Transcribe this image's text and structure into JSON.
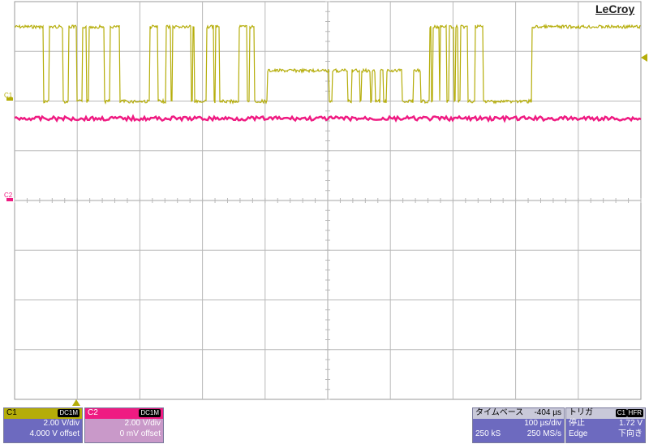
{
  "brand": "LeCroy",
  "colors": {
    "c1": "#b5ad09",
    "c2": "#ef1b82",
    "grid": "#b8b8b8",
    "panel": "#6d6abf"
  },
  "markers": {
    "c1": "C1",
    "c2": "C2"
  },
  "channel1": {
    "name": "C1",
    "coupling": "DC1M",
    "vdiv": "2.00 V/div",
    "offset": "4.000 V offset"
  },
  "channel2": {
    "name": "C2",
    "coupling": "DC1M",
    "vdiv": "2.00 V/div",
    "offset": "0 mV offset"
  },
  "timebase": {
    "title": "タイムベース",
    "delay": "-404 µs",
    "tdiv": "100 µs/div",
    "samples": "250 kS",
    "rate": "250 MS/s"
  },
  "trigger": {
    "title": "トリガ",
    "source": "C1",
    "mode_tag": "HFR",
    "state": "停止",
    "level": "1.72 V",
    "type": "Edge",
    "slope": "下向き"
  }
}
